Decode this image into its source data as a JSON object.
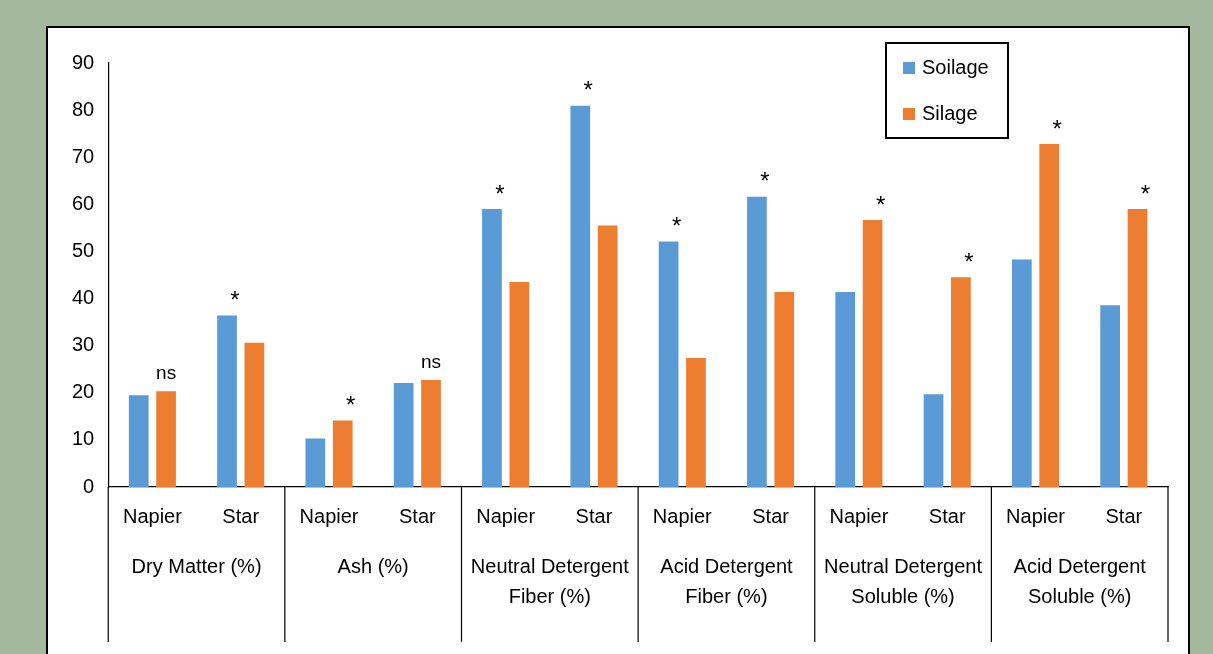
{
  "chart_data": {
    "type": "bar",
    "categories": [
      "Napier",
      "Star",
      "Napier",
      "Star",
      "Napier",
      "Star",
      "Napier",
      "Star",
      "Napier",
      "Star",
      "Napier",
      "Star"
    ],
    "series": [
      {
        "name": "Soilage",
        "color": "#5b9bd5",
        "values": [
          19.5,
          36.4,
          10.3,
          22.1,
          59.0,
          80.9,
          52.1,
          61.6,
          41.4,
          19.7,
          48.3,
          38.6
        ],
        "value_labels": [
          null,
          "*",
          null,
          null,
          "*",
          "*",
          "*",
          "*",
          null,
          null,
          null,
          null
        ]
      },
      {
        "name": "Silage",
        "color": "#ed7d31",
        "values": [
          20.3,
          30.6,
          14.1,
          22.7,
          43.5,
          55.5,
          27.4,
          41.4,
          56.7,
          44.5,
          72.8,
          59.0
        ],
        "value_labels": [
          "ns",
          null,
          "*",
          "ns",
          null,
          null,
          null,
          null,
          "*",
          "*",
          "*",
          "*"
        ]
      }
    ],
    "annotations": [
      "Dry Matter (%)",
      "Ash (%)",
      "Neutral Detergent Fiber (%)",
      "Acid Detergent Fiber (%)",
      "Neutral Detergent Soluble (%)",
      "Acid Detergent Soluble (%)"
    ],
    "ylim": [
      0,
      90
    ],
    "yticks": [
      0,
      10,
      20,
      30,
      40,
      50,
      60,
      70,
      80,
      90
    ],
    "grid": false,
    "legend": "top right"
  }
}
